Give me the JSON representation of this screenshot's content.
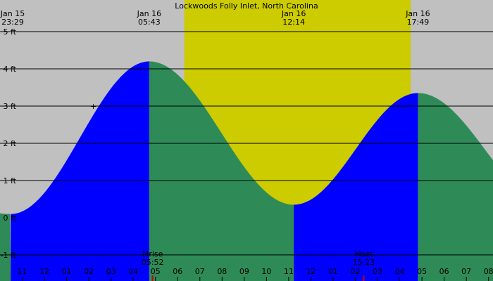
{
  "title": "Lockwoods Folly Inlet, North Carolina",
  "colors": {
    "background": "#c0c0c0",
    "daylight": "#cccc00",
    "rising": "#0000ff",
    "falling": "#2e8b57",
    "gridline": "#000000",
    "moon_tick": "#cc0000"
  },
  "chart_data": {
    "type": "area",
    "title": "Lockwoods Folly Inlet, North Carolina",
    "xlabel": "",
    "ylabel": "",
    "x_range_hours": [
      -1.0,
      21.2
    ],
    "ylim": [
      -1.7,
      5.85
    ],
    "y_ticks": [
      -1,
      0,
      1,
      2,
      3,
      4,
      5
    ],
    "y_tick_labels": [
      "-1 ft",
      "0 ft",
      "1 ft",
      "2 ft",
      "3 ft",
      "4 ft",
      "5 ft"
    ],
    "grid": true,
    "x_tick_labels": [
      "11",
      "12",
      "01",
      "02",
      "03",
      "04",
      "05",
      "06",
      "07",
      "08",
      "09",
      "10",
      "11",
      "12",
      "01",
      "02",
      "03",
      "04",
      "05",
      "06",
      "07",
      "08",
      "09"
    ],
    "daylight": {
      "start_hour": 7.3,
      "end_hour": 17.49
    },
    "extremes": [
      {
        "date": "Jan 15",
        "time": "23:29",
        "hour": -0.52,
        "height_ft": 0.1,
        "kind": "low"
      },
      {
        "date": "Jan 16",
        "time": "05:43",
        "hour": 5.72,
        "height_ft": 4.2,
        "kind": "high"
      },
      {
        "date": "Jan 16",
        "time": "12:14",
        "hour": 12.23,
        "height_ft": 0.35,
        "kind": "low"
      },
      {
        "date": "Jan 16",
        "time": "17:49",
        "hour": 17.82,
        "height_ft": 3.35,
        "kind": "high"
      }
    ],
    "series": [
      {
        "direction": "rising",
        "from_hour": -0.52,
        "to_hour": 5.72
      },
      {
        "direction": "falling",
        "from_hour": 5.72,
        "to_hour": 12.23
      },
      {
        "direction": "rising",
        "from_hour": 12.23,
        "to_hour": 17.82
      },
      {
        "direction": "falling",
        "from_hour": 17.82,
        "to_hour": 21.2
      }
    ],
    "after_range": {
      "hour": 24.0,
      "height_ft": 0.2,
      "kind": "low"
    },
    "moon_events": [
      {
        "label": "Mrise",
        "time": "05:52",
        "hour": 5.87
      },
      {
        "label": "Mset",
        "time": "15:23",
        "hour": 15.38
      }
    ],
    "annotations": [
      {
        "text": "+",
        "hour": 3.2,
        "height_ft": 3.0
      }
    ]
  }
}
